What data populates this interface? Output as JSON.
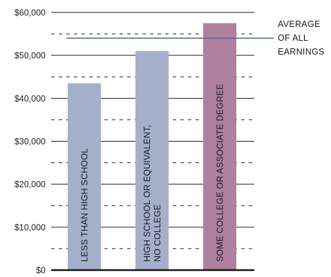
{
  "chart_data": {
    "type": "bar",
    "title": "",
    "xlabel": "",
    "ylabel": "",
    "ylim": [
      0,
      60000
    ],
    "grid": "dashed minor lines, solid major lines",
    "categories": [
      [
        "LESS THAN HIGH SCHOOL"
      ],
      [
        "HIGH SCHOOL OR EQUIVALENT,",
        "NO COLLEGE"
      ],
      [
        "SOME COLLEGE OR ASSOCIATE DEGREE"
      ]
    ],
    "values": [
      43500,
      51000,
      57500
    ],
    "bar_colors": [
      "#a5afcc",
      "#a5afcc",
      "#b0809f"
    ],
    "y_ticks": [
      {
        "value": 0,
        "label": "$0"
      },
      {
        "value": 10000,
        "label": "$10,000"
      },
      {
        "value": 20000,
        "label": "$20,000"
      },
      {
        "value": 30000,
        "label": "$30,000"
      },
      {
        "value": 40000,
        "label": "$40,000"
      },
      {
        "value": 50000,
        "label": "$50,000"
      },
      {
        "value": 60000,
        "label": "$60,000"
      }
    ],
    "reference_line": {
      "value": 54000,
      "label": [
        "AVERAGE",
        "OF ALL",
        "EARNINGS"
      ],
      "color": "#5a6a94"
    }
  }
}
